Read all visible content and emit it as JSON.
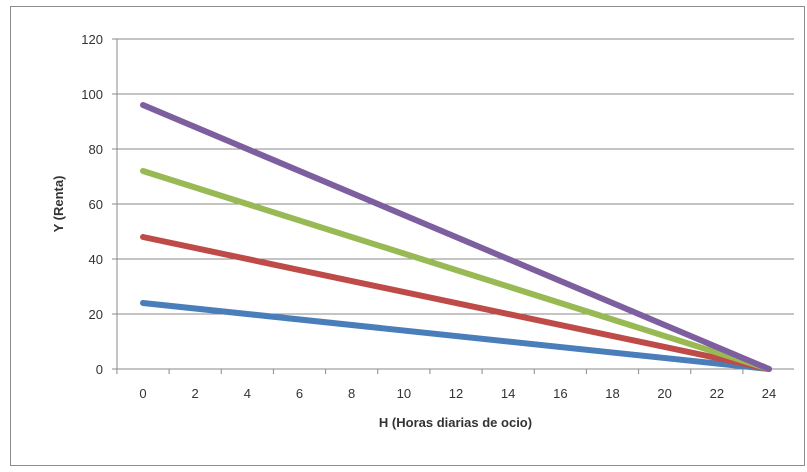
{
  "chart_data": {
    "type": "line",
    "title": "",
    "xlabel": "H (Horas diarias de ocio)",
    "ylabel": "Y (Renta)",
    "xlim": [
      0,
      24
    ],
    "ylim": [
      0,
      120
    ],
    "x_ticks": [
      0,
      2,
      4,
      6,
      8,
      10,
      12,
      14,
      16,
      18,
      20,
      22,
      24
    ],
    "y_ticks": [
      0,
      20,
      40,
      60,
      80,
      100,
      120
    ],
    "grid": "horizontal",
    "legend": "none",
    "series": [
      {
        "color": "#4a7ebb",
        "x": [
          0,
          24
        ],
        "y": [
          24,
          0
        ]
      },
      {
        "color": "#be4b48",
        "x": [
          0,
          24
        ],
        "y": [
          48,
          0
        ]
      },
      {
        "color": "#98b954",
        "x": [
          0,
          24
        ],
        "y": [
          72,
          0
        ]
      },
      {
        "color": "#7d5fa0",
        "x": [
          0,
          24
        ],
        "y": [
          96,
          0
        ]
      }
    ]
  }
}
